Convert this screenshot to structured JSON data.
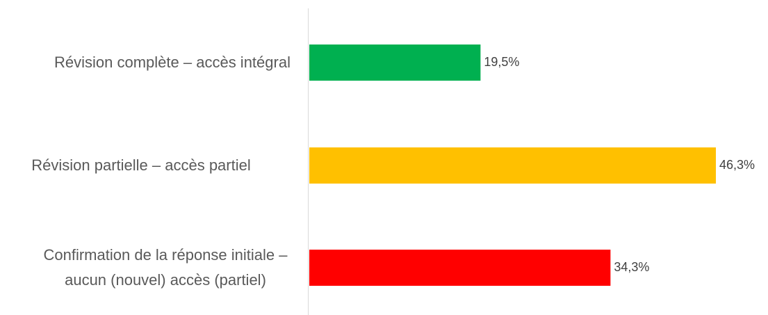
{
  "chart_data": {
    "type": "barh",
    "categories": [
      "Révision complète – accès intégral",
      "Révision partielle – accès partiel",
      "Confirmation de la réponse initiale – aucun (nouvel) accès (partiel)"
    ],
    "values": [
      19.5,
      46.3,
      34.3
    ],
    "value_labels": [
      "19,5%",
      "46,3%",
      "34,3%"
    ],
    "colors": [
      "#00b050",
      "#ffc000",
      "#ff0000"
    ]
  }
}
